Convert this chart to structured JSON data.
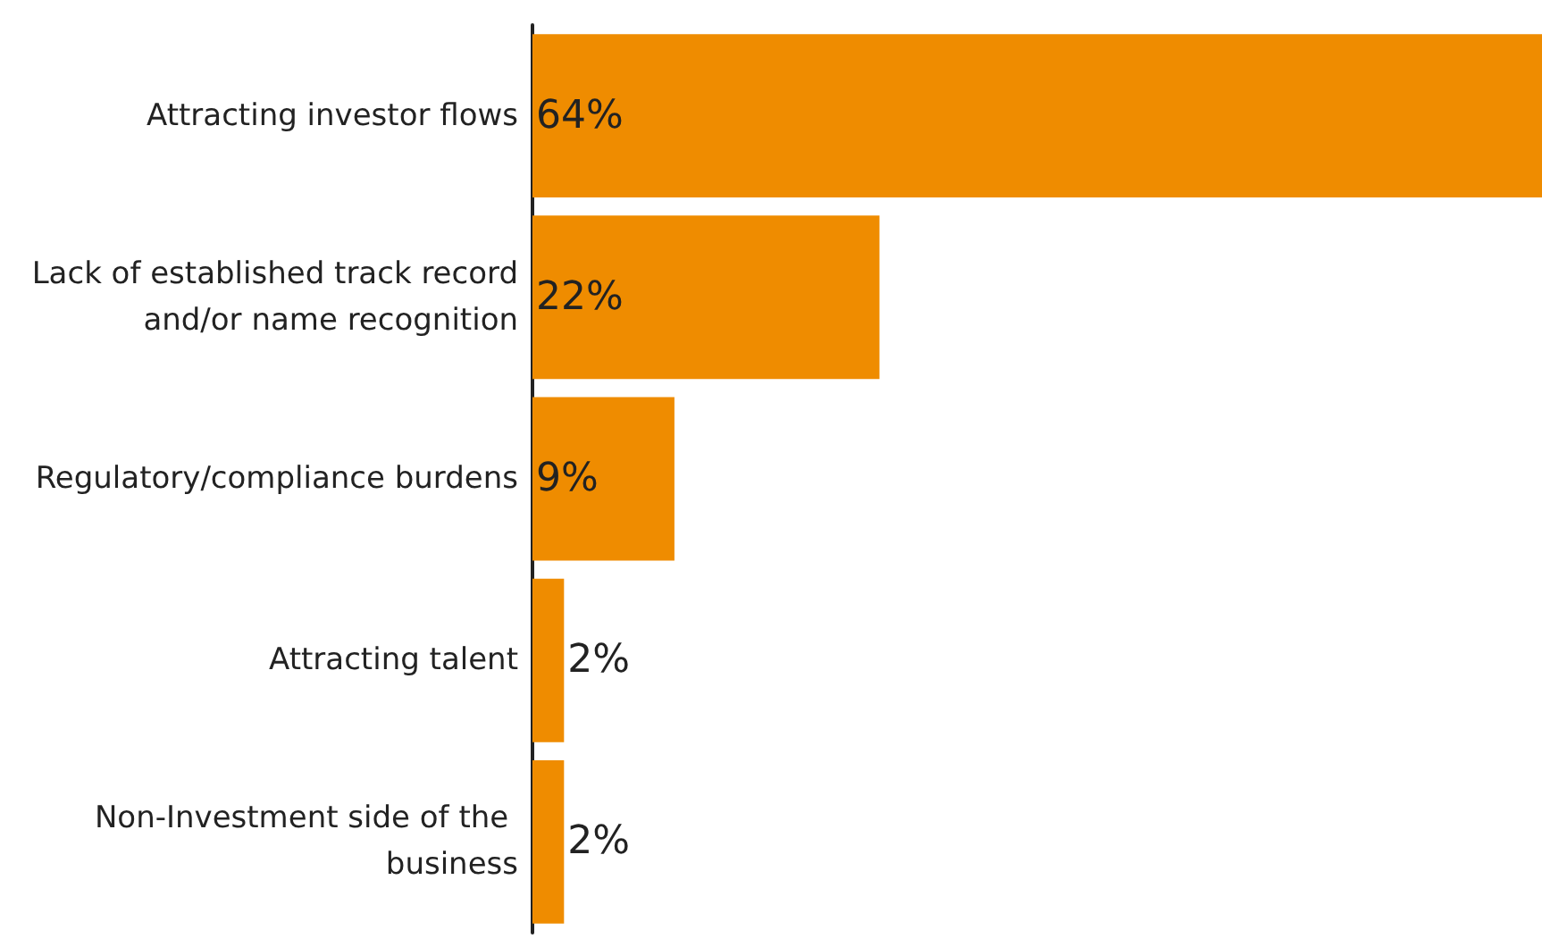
{
  "chart_data": {
    "type": "bar",
    "orientation": "horizontal",
    "categories": [
      "Attracting investor flows",
      "Lack of established track record and/or name recognition",
      "Regulatory/compliance burdens",
      "Attracting talent",
      "Non-Investment side of the business"
    ],
    "values": [
      64,
      22,
      9,
      2,
      2
    ],
    "value_labels": [
      "64%",
      "22%",
      "9%",
      "2%",
      "2%"
    ],
    "color": "#ef8c00",
    "grid": false
  }
}
